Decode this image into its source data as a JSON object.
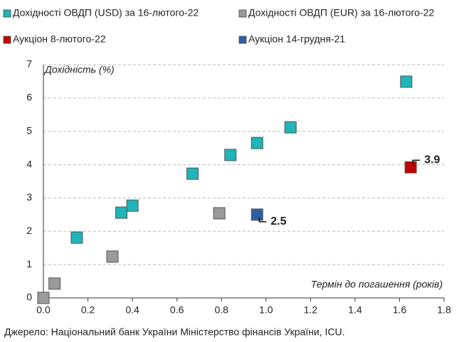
{
  "chart_data": {
    "type": "scatter",
    "series": [
      {
        "name": "Дохідності ОВДП (USD) за 16-лютого-22",
        "color": "#20b5b8",
        "x": [
          0.15,
          0.35,
          0.4,
          0.67,
          0.84,
          0.96,
          1.11,
          1.63
        ],
        "values": [
          1.81,
          2.56,
          2.77,
          3.73,
          4.29,
          4.65,
          5.12,
          6.49
        ]
      },
      {
        "name": "Дохідності ОВДП (EUR) за 16-лютого-22",
        "color": "#9a9a9a",
        "x": [
          0.0,
          0.05,
          0.31,
          0.79
        ],
        "values": [
          0.0,
          0.43,
          1.24,
          2.54
        ]
      },
      {
        "name": "Аукціон 8-лютого-22",
        "color": "#c00000",
        "x": [
          1.65
        ],
        "values": [
          3.92
        ],
        "value_labels": [
          "3.9"
        ]
      },
      {
        "name": "Аукціон 14-грудня-21",
        "color": "#2e5fa3",
        "x": [
          0.96
        ],
        "values": [
          2.5
        ],
        "value_labels": [
          "2.5"
        ]
      }
    ],
    "ylabel": "Дохідність (%)",
    "xlabel": "Термін до погашення (років)",
    "xlim": [
      0,
      1.8
    ],
    "xticks": [
      {
        "value": 0,
        "label": "0.0"
      },
      0.2,
      0.4,
      0.6,
      0.8,
      {
        "value": 1,
        "label": "1.0"
      },
      1.2,
      1.4,
      1.6,
      1.8
    ],
    "ylim": [
      0,
      7
    ],
    "yticks": [
      0,
      1,
      2,
      3,
      4,
      5,
      6,
      7
    ],
    "grid": true,
    "source": "Джерело: Національний банк України Міністерство фінансів України, ICU."
  }
}
